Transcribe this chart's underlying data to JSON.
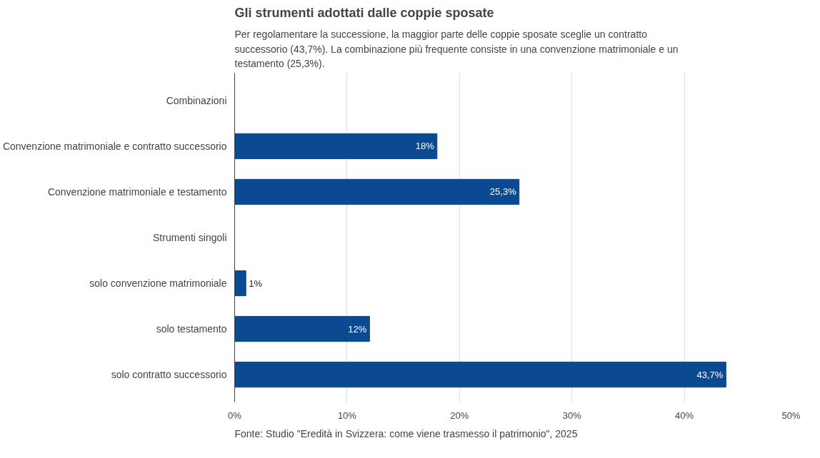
{
  "chart_data": {
    "type": "bar",
    "orientation": "horizontal",
    "title": "Gli strumenti adottati dalle coppie sposate",
    "subtitle": "Per regolamentare la successione, la maggior parte delle coppie sposate sceglie un contratto successorio (43,7%). La combinazione più frequente consiste in una convenzione matrimoniale e un testamento (25,3%).",
    "categories": [
      "Combinazioni",
      "Convenzione matrimoniale e contratto successorio",
      "Convenzione matrimoniale e testamento",
      "Strumenti singoli",
      "solo convenzione matrimoniale",
      "solo testamento",
      "solo contratto successorio"
    ],
    "values": [
      null,
      18,
      25.3,
      null,
      1,
      12,
      43.7
    ],
    "value_labels": [
      null,
      "18%",
      "25,3%",
      null,
      "1%",
      "12%",
      "43,7%"
    ],
    "color": "#0b4a93",
    "xlim": [
      0,
      50
    ],
    "xticks": [
      {
        "value": 0,
        "label": "0%"
      },
      {
        "value": 10,
        "label": "10%"
      },
      {
        "value": 20,
        "label": "20%"
      },
      {
        "value": 30,
        "label": "30%"
      },
      {
        "value": 40,
        "label": "40%"
      },
      {
        "value": 50,
        "label": "50%"
      }
    ],
    "grid": "x",
    "annotations": [
      "Fonte: Studio \"Eredità in Svizzera: come viene trasmesso il patrimonio\", 2025"
    ]
  }
}
